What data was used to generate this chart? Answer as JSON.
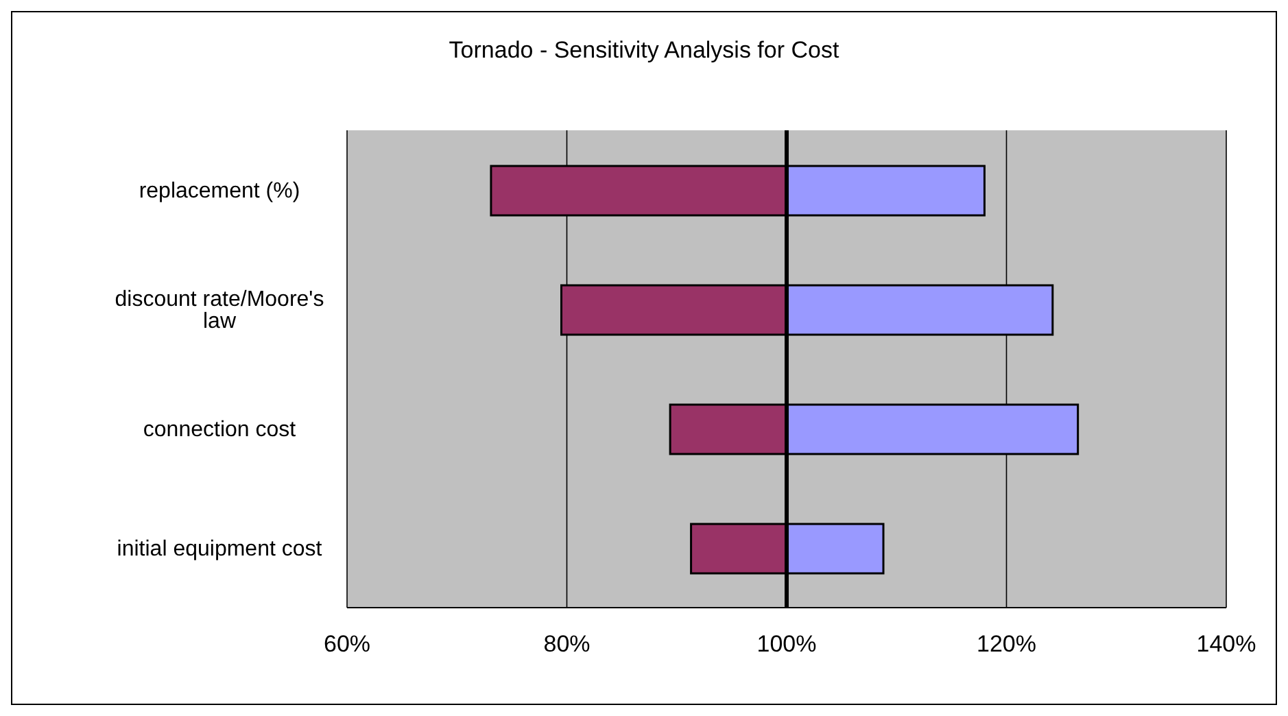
{
  "chart_data": {
    "type": "bar",
    "orientation": "horizontal",
    "title": "Tornado - Sensitivity Analysis for Cost",
    "categories": [
      "replacement (%)",
      "discount rate/Moore's law",
      "connection cost",
      "initial equipment cost"
    ],
    "series": [
      {
        "color": "#993366",
        "base": [
          100,
          100,
          100,
          100
        ],
        "values": [
          -26.9,
          -20.5,
          -10.6,
          -8.7
        ]
      },
      {
        "color": "#9999ff",
        "base": [
          100,
          100,
          100,
          100
        ],
        "values": [
          18.0,
          24.2,
          26.5,
          8.8
        ]
      }
    ],
    "xlim": [
      60,
      140
    ],
    "xticks": [
      {
        "value": 60,
        "label": "60%"
      },
      {
        "value": 80,
        "label": "80%"
      },
      {
        "value": 100,
        "label": "100%"
      },
      {
        "value": 120,
        "label": "120%"
      },
      {
        "value": 140,
        "label": "140%"
      }
    ],
    "ref_lines": [
      {
        "axis": "x",
        "value": 100,
        "color": "#000000"
      }
    ],
    "grid": "x",
    "legend": false
  }
}
